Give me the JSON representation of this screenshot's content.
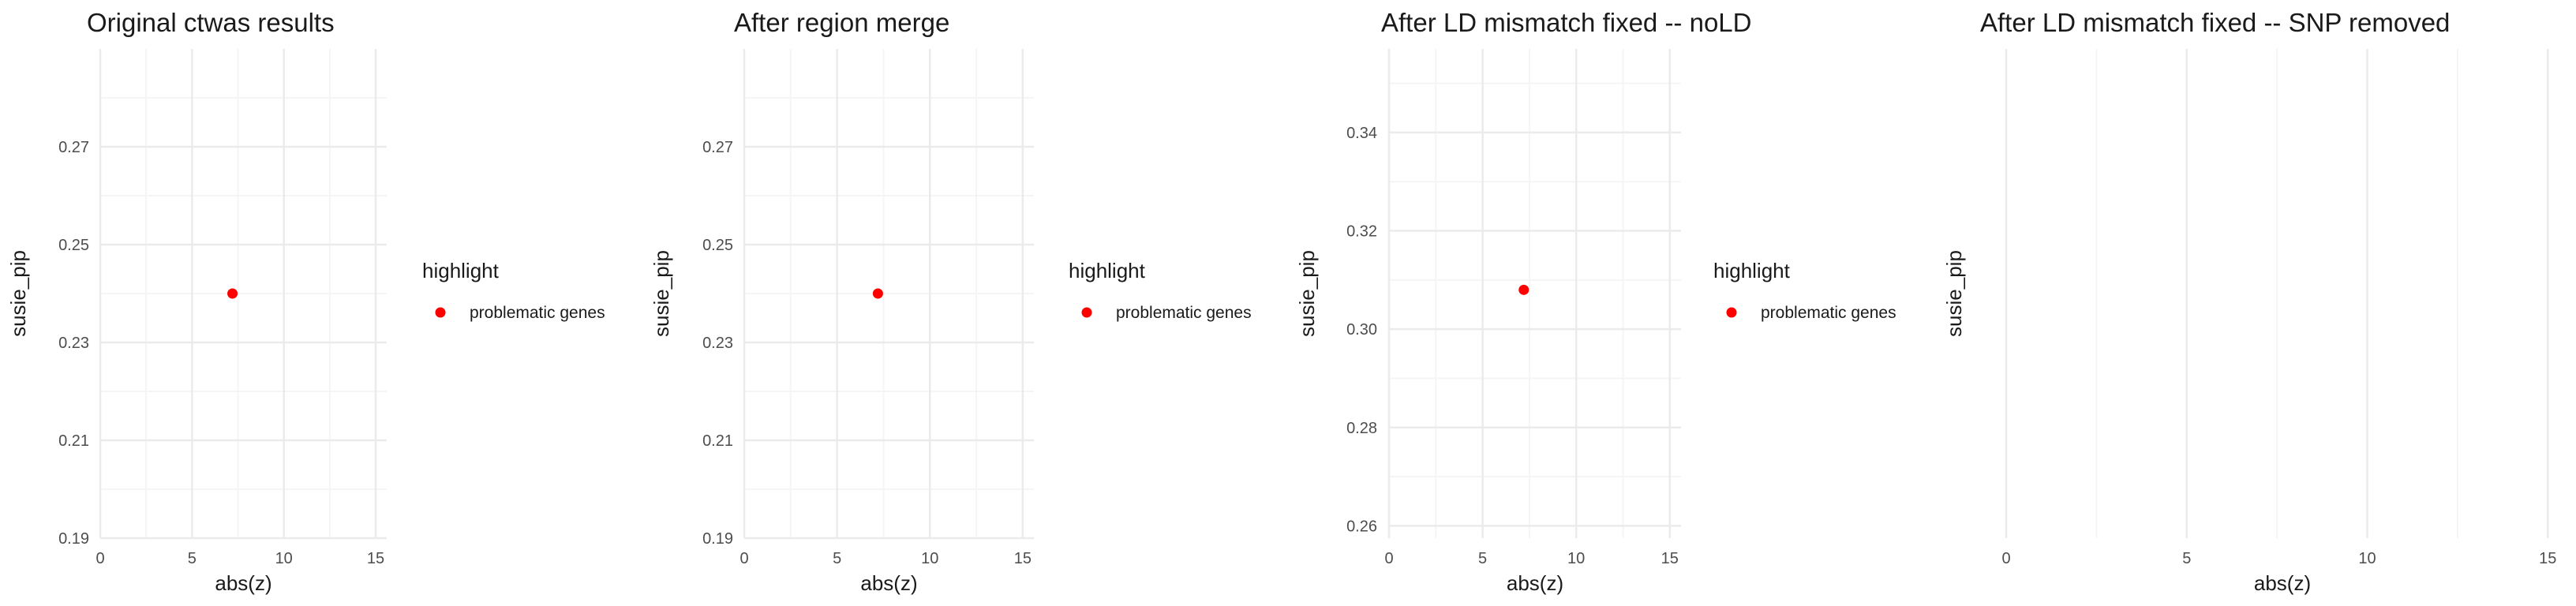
{
  "figure": {
    "colors": {
      "background": "#ffffff",
      "grid_major": "#ebebeb",
      "grid_minor": "#f5f5f5",
      "tick_text": "#4d4d4d",
      "title_text": "#1a1a1a",
      "point": "#ff0000"
    }
  },
  "chart_data": [
    {
      "type": "scatter",
      "title": "Original ctwas results",
      "xlabel": "abs(z)",
      "ylabel": "susie_pip",
      "xlim": [
        0,
        15.6
      ],
      "ylim": [
        0.19,
        0.29
      ],
      "x_ticks": [
        0,
        5,
        10,
        15
      ],
      "x_tick_labels": [
        "0",
        "5",
        "10",
        "15"
      ],
      "y_ticks": [
        0.19,
        0.21,
        0.23,
        0.25,
        0.27
      ],
      "y_tick_labels": [
        "0.19",
        "0.21",
        "0.23",
        "0.25",
        "0.27"
      ],
      "grid": true,
      "series": [
        {
          "name": "problematic genes",
          "color": "#ff0000",
          "points": [
            {
              "x": 7.2,
              "y": 0.24
            }
          ]
        }
      ],
      "legend": {
        "title": "highlight",
        "position": "right",
        "items": [
          "problematic genes"
        ]
      }
    },
    {
      "type": "scatter",
      "title": "After region merge",
      "xlabel": "abs(z)",
      "ylabel": "susie_pip",
      "xlim": [
        0,
        15.6
      ],
      "ylim": [
        0.19,
        0.29
      ],
      "x_ticks": [
        0,
        5,
        10,
        15
      ],
      "x_tick_labels": [
        "0",
        "5",
        "10",
        "15"
      ],
      "y_ticks": [
        0.19,
        0.21,
        0.23,
        0.25,
        0.27
      ],
      "y_tick_labels": [
        "0.19",
        "0.21",
        "0.23",
        "0.25",
        "0.27"
      ],
      "grid": true,
      "series": [
        {
          "name": "problematic genes",
          "color": "#ff0000",
          "points": [
            {
              "x": 7.2,
              "y": 0.24
            }
          ]
        }
      ],
      "legend": {
        "title": "highlight",
        "position": "right",
        "items": [
          "problematic genes"
        ]
      }
    },
    {
      "type": "scatter",
      "title": "After LD mismatch fixed -- noLD",
      "xlabel": "abs(z)",
      "ylabel": "susie_pip",
      "xlim": [
        0,
        15.6
      ],
      "ylim": [
        0.2575,
        0.357
      ],
      "x_ticks": [
        0,
        5,
        10,
        15
      ],
      "x_tick_labels": [
        "0",
        "5",
        "10",
        "15"
      ],
      "y_ticks": [
        0.26,
        0.28,
        0.3,
        0.32,
        0.34
      ],
      "y_tick_labels": [
        "0.26",
        "0.28",
        "0.30",
        "0.32",
        "0.34"
      ],
      "grid": true,
      "series": [
        {
          "name": "problematic genes",
          "color": "#ff0000",
          "points": [
            {
              "x": 7.2,
              "y": 0.308
            }
          ]
        }
      ],
      "legend": {
        "title": "highlight",
        "position": "right",
        "items": [
          "problematic genes"
        ]
      }
    },
    {
      "type": "scatter",
      "title": "After LD mismatch fixed -- SNP removed",
      "xlabel": "abs(z)",
      "ylabel": "susie_pip",
      "xlim": [
        0,
        15.3
      ],
      "ylim": null,
      "x_ticks": [
        0,
        5,
        10,
        15
      ],
      "x_tick_labels": [
        "0",
        "5",
        "10",
        "15"
      ],
      "y_ticks": [],
      "y_tick_labels": [],
      "grid": true,
      "series": [],
      "legend": null
    }
  ]
}
